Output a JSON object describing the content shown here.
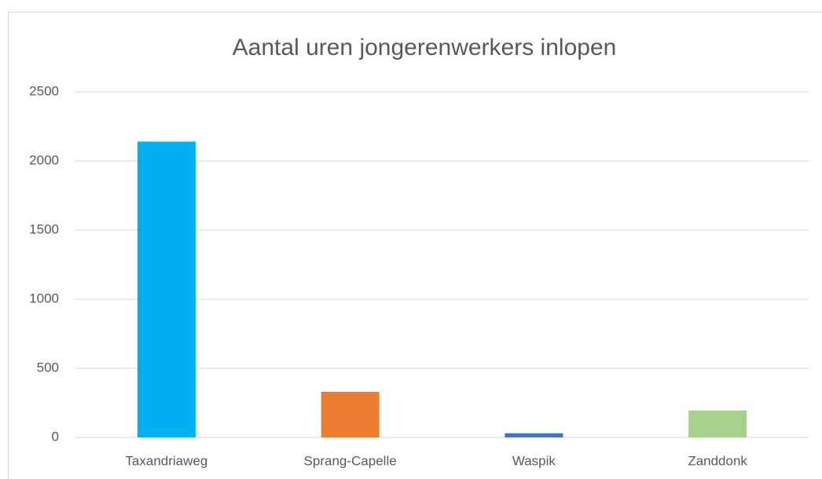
{
  "chart_data": {
    "type": "bar",
    "title": "Aantal uren jongerenwerkers inlopen",
    "categories": [
      "Taxandriaweg",
      "Sprang-Capelle",
      "Waspik",
      "Zanddonk"
    ],
    "values": [
      2140,
      330,
      30,
      195
    ],
    "colors": [
      "#00b0f0",
      "#ed7d31",
      "#4472c4",
      "#a9d18e"
    ],
    "ylim": [
      0,
      2500
    ],
    "yticks": [
      0,
      500,
      1000,
      1500,
      2000,
      2500
    ],
    "grid": true
  }
}
